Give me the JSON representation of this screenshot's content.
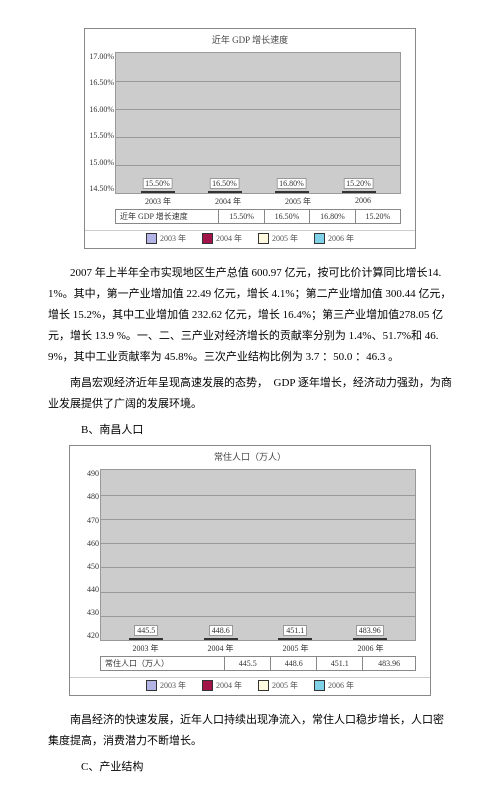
{
  "chart1": {
    "title": "近年 GDP 增长速度",
    "ylim": [
      14.5,
      17.0
    ],
    "ytick_step": 0.5,
    "categories": [
      "2003 年",
      "2004 年",
      "2005 年",
      "2006"
    ],
    "values": [
      "15.50%",
      "16.50%",
      "16.80%",
      "15.20%"
    ],
    "valuesNum": [
      15.5,
      16.5,
      16.8,
      15.2
    ],
    "colors": [
      "#b3b3e6",
      "#a0144a",
      "#fffae0",
      "#7ed1e6"
    ],
    "rowLabel": "近年 GDP 增长速度",
    "background": "#cccccc",
    "grid": "#999999"
  },
  "para1": "2007 年上半年全市实现地区生产总值 600.97 亿元，按可比价计算同比增长14.1%。其中，第一产业增加值 22.49 亿元，增长 4.1%；第二产业增加值 300.44 亿元，增长 15.2%，其中工业增加值 232.62 亿元，增长 16.4%；第三产业增加值278.05 亿元，增长 13.9 %。一、二、三产业对经济增长的贡献率分别为 1.4%、51.7%和 46.9%，其中工业贡献率为 45.8%。三次产业结构比例为 3.7 ：50.0 ：46.3 。",
  "para2": "南昌宏观经济近年呈现高速发展的态势，　GDP 逐年增长，经济动力强劲，为商业发展提供了广阔的发展环境。",
  "secB": "B、南昌人口",
  "chart2": {
    "title": "常住人口（万人）",
    "ylim": [
      420,
      490
    ],
    "ytick_step": 10,
    "categories": [
      "2003 年",
      "2004 年",
      "2005 年",
      "2006 年"
    ],
    "values": [
      "445.5",
      "448.6",
      "451.1",
      "483.96"
    ],
    "valuesNum": [
      445.5,
      448.6,
      451.1,
      483.96
    ],
    "colors": [
      "#b3b3e6",
      "#a0144a",
      "#fffae0",
      "#7ed1e6"
    ],
    "rowLabel": "常住人口（万人）",
    "background": "#cccccc",
    "grid": "#999999"
  },
  "legendYears": [
    "2003 年",
    "2004 年",
    "2005 年",
    "2006 年"
  ],
  "para3": "南昌经济的快速发展，近年人口持续出现净流入，常住人口稳步增长，人口密集度提高，消费潜力不断增长。",
  "secC": "C、产业结构"
}
